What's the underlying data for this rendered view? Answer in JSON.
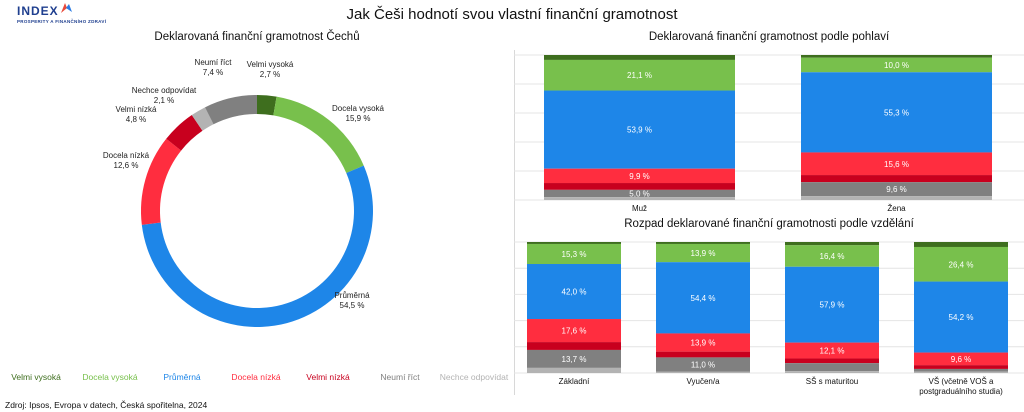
{
  "page": {
    "title": "Jak Češi hodnotí svou vlastní finanční gramotnost",
    "source": "Zdroj: Ipsos, Evropa v datech, Česká spořitelna, 2024"
  },
  "logo": {
    "name": "INDEX",
    "subtitle": "PROSPERITY A FINANČNÍHO ZDRAVÍ",
    "icon": "index-logo-icon",
    "colors": [
      "#e84a3a",
      "#2a7be4"
    ]
  },
  "colors": {
    "Velmi vysoká": "#3e6e1e",
    "Docela vysoká": "#78c04c",
    "Průměrná": "#1e86e8",
    "Docela nízká": "#ff2d3f",
    "Velmi nízká": "#c8001e",
    "Neumí říct": "#808080",
    "Nechce odpovídat": "#b3b3b3"
  },
  "chart_data": [
    {
      "type": "pie",
      "title": "Deklarovaná finanční gramotnost Čechů",
      "slices": [
        {
          "label": "Velmi vysoká",
          "value": 2.7,
          "text": "2,7 %"
        },
        {
          "label": "Docela vysoká",
          "value": 15.9,
          "text": "15,9 %"
        },
        {
          "label": "Průměrná",
          "value": 54.5,
          "text": "54,5 %"
        },
        {
          "label": "Docela nízká",
          "value": 12.6,
          "text": "12,6 %"
        },
        {
          "label": "Velmi nízká",
          "value": 4.8,
          "text": "4,8 %"
        },
        {
          "label": "Nechce odpovídat",
          "value": 2.1,
          "text": "2,1 %"
        },
        {
          "label": "Neumí říct",
          "value": 7.4,
          "text": "7,4 %"
        }
      ],
      "legend": [
        "Velmi vysoká",
        "Docela vysoká",
        "Průměrná",
        "Docela nízká",
        "Velmi nízká",
        "Neumí říct",
        "Nechce odpovídat"
      ],
      "legend_position": "bottom"
    },
    {
      "type": "bar",
      "stacked": true,
      "title": "Deklarovaná finanční gramotnost podle pohlaví",
      "categories": [
        "Muž",
        "Žena"
      ],
      "series": [
        {
          "name": "Velmi vysoká",
          "values": [
            3.4,
            1.9
          ]
        },
        {
          "name": "Docela vysoká",
          "values": [
            21.1,
            10.0
          ]
        },
        {
          "name": "Průměrná",
          "values": [
            53.9,
            55.3
          ]
        },
        {
          "name": "Docela nízká",
          "values": [
            9.9,
            15.6
          ]
        },
        {
          "name": "Velmi nízká",
          "values": [
            4.7,
            4.9
          ]
        },
        {
          "name": "Neumí říct",
          "values": [
            5.0,
            9.6
          ]
        },
        {
          "name": "Nechce odpovídat",
          "values": [
            2.0,
            2.7
          ]
        }
      ],
      "labels_shown": {
        "Docela vysoká": true,
        "Průměrná": true,
        "Docela nízká": true,
        "Neumí říct": true
      },
      "ylim": [
        0,
        100
      ]
    },
    {
      "type": "bar",
      "stacked": true,
      "title": "Rozpad deklarované finanční gramotnosti podle vzdělání",
      "categories": [
        "Základní",
        "Vyučen/a",
        "SŠ s maturitou",
        "VŠ (včetně VOŠ a postgraduálního studia)"
      ],
      "series": [
        {
          "name": "Velmi vysoká",
          "values": [
            1.5,
            1.5,
            2.5,
            3.8
          ]
        },
        {
          "name": "Docela vysoká",
          "values": [
            15.3,
            13.9,
            16.4,
            26.4
          ]
        },
        {
          "name": "Průměrná",
          "values": [
            42.0,
            54.4,
            57.9,
            54.2
          ]
        },
        {
          "name": "Docela nízká",
          "values": [
            17.6,
            13.9,
            12.1,
            9.6
          ]
        },
        {
          "name": "Velmi nízká",
          "values": [
            6.0,
            4.4,
            3.6,
            2.9
          ]
        },
        {
          "name": "Neumí říct",
          "values": [
            13.7,
            11.0,
            6.1,
            2.0
          ]
        },
        {
          "name": "Nechce odpovídat",
          "values": [
            3.9,
            0.9,
            1.4,
            1.1
          ]
        }
      ],
      "labels_shown": {
        "Docela vysoká": true,
        "Průměrná": true,
        "Docela nízká": true,
        "Neumí říct": [
          true,
          true,
          false,
          false
        ]
      },
      "ylim": [
        0,
        100
      ]
    }
  ]
}
